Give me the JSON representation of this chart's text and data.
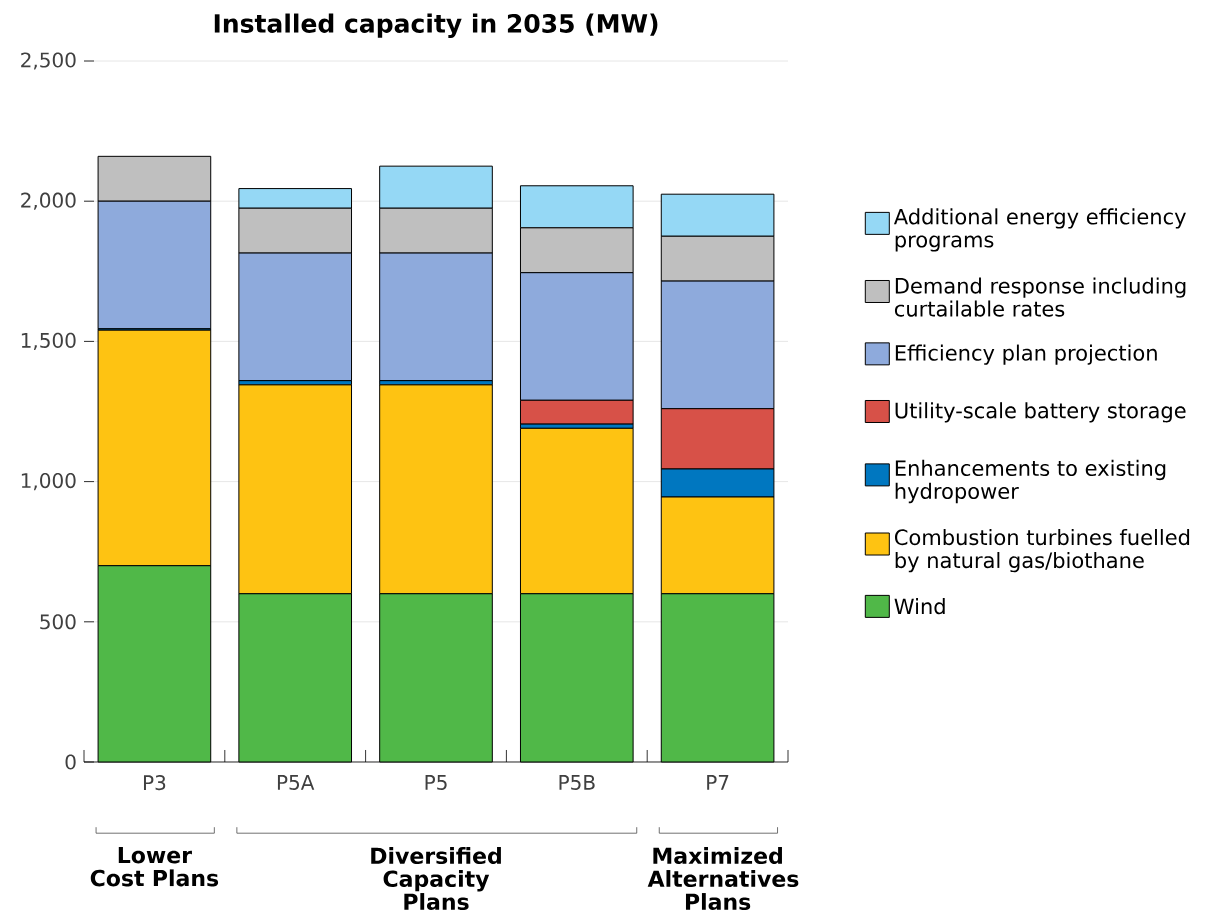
{
  "chart_data": {
    "type": "bar",
    "stacked": true,
    "title": "Installed capacity in 2035 (MW)",
    "categories": [
      "P3",
      "P5A",
      "P5",
      "P5B",
      "P7"
    ],
    "series": [
      {
        "name": "Wind",
        "color": "#50b848",
        "values": [
          700,
          600,
          600,
          600,
          600
        ]
      },
      {
        "name": "Combustion turbines fuelled by natural gas/biothane",
        "color": "#fec312",
        "values": [
          840,
          745,
          745,
          590,
          345
        ]
      },
      {
        "name": "Enhancements to existing hydropower",
        "color": "#0077c0",
        "values": [
          5,
          15,
          15,
          15,
          100
        ]
      },
      {
        "name": "Utility-scale battery storage",
        "color": "#d75148",
        "values": [
          0,
          0,
          0,
          85,
          215
        ]
      },
      {
        "name": "Efficiency plan projection",
        "color": "#8eaadc",
        "values": [
          455,
          455,
          455,
          455,
          455
        ]
      },
      {
        "name": "Demand response including curtailable rates",
        "color": "#bfbfbf",
        "values": [
          160,
          160,
          160,
          160,
          160
        ]
      },
      {
        "name": "Additional energy efficiency programs",
        "color": "#95d8f5",
        "values": [
          0,
          70,
          150,
          150,
          150
        ]
      }
    ],
    "ylim": [
      0,
      2500
    ],
    "yticks": [
      0,
      500,
      {
        "value": 1000,
        "label": "1,000"
      },
      {
        "value": 1500,
        "label": "1,500"
      },
      {
        "value": 2000,
        "label": "2,000"
      },
      {
        "value": 2500,
        "label": "2,500"
      }
    ],
    "grid": "y",
    "legend": "right",
    "annotations": [
      "Lower Cost Plans",
      "Diversified Capacity Plans",
      "Maximized Alternatives Plans"
    ]
  }
}
